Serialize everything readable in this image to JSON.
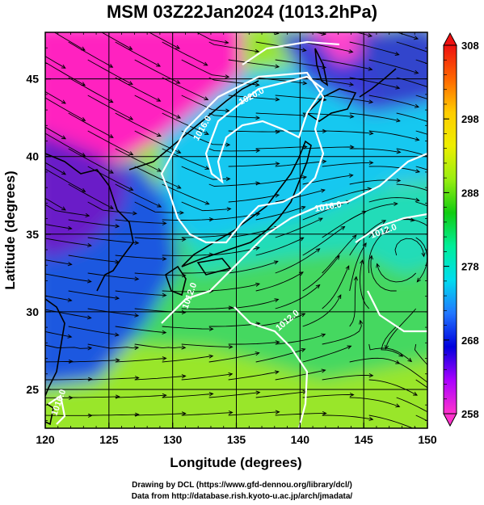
{
  "chart_data": {
    "type": "heatmap",
    "title": "MSM 03Z22Jan2024 (1013.2hPa)",
    "xlabel": "Longitude (degrees)",
    "ylabel": "Latitude  (degrees)",
    "xlim": [
      120,
      150
    ],
    "ylim": [
      22.5,
      48
    ],
    "x_ticks": [
      "120",
      "125",
      "130",
      "135",
      "140",
      "145",
      "150"
    ],
    "x_tick_values": [
      120,
      125,
      130,
      135,
      140,
      145,
      150
    ],
    "y_ticks": [
      "25",
      "30",
      "35",
      "40",
      "45"
    ],
    "y_tick_values": [
      25,
      30,
      35,
      40,
      45
    ],
    "colorbar": {
      "min": 258,
      "max": 308,
      "labels": [
        "258",
        "268",
        "278",
        "288",
        "298",
        "308"
      ],
      "label_values": [
        258,
        268,
        278,
        288,
        298,
        308
      ],
      "colors": [
        "#ff33cc",
        "#aa00ff",
        "#0000dd",
        "#2277ff",
        "#00ddee",
        "#00ee99",
        "#11cc11",
        "#99ee11",
        "#eeee00",
        "#ffcc00",
        "#ff6600",
        "#ee1111"
      ]
    },
    "grid": true,
    "contour_labels": [
      "1020.0",
      "1016.0",
      "1016.0",
      "1012.0",
      "1012.0",
      "1012.0",
      "1016.0"
    ],
    "background_colors": {
      "north_land": "#ff22bb",
      "cold_land": "#5522bb",
      "cold_sea": "#2255dd",
      "cyan_sea": "#00d8f0",
      "warm_sea": "#44e060",
      "south_sea": "#aaee22"
    }
  },
  "credits": {
    "line1": "Drawing by DCL (https://www.gfd-dennou.org/library/dcl/)",
    "line2": "Data from http://database.rish.kyoto-u.ac.jp/arch/jmadata/"
  }
}
